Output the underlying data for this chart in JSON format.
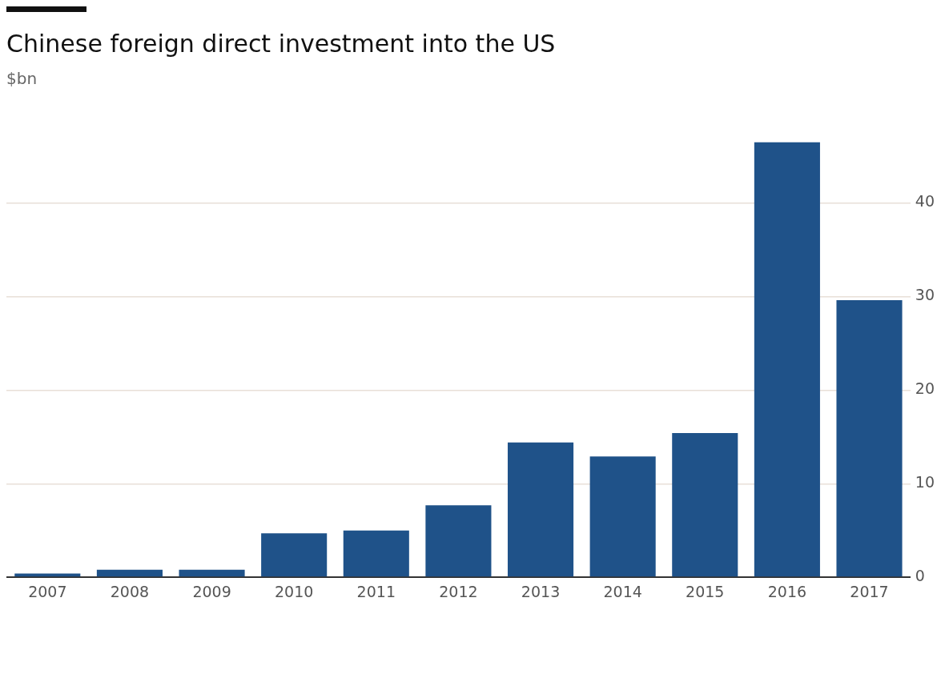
{
  "chart_data": {
    "type": "bar",
    "title": "Chinese foreign direct investment into the US",
    "annotations": [
      "$bn"
    ],
    "categories": [
      "2007",
      "2008",
      "2009",
      "2010",
      "2011",
      "2012",
      "2013",
      "2014",
      "2015",
      "2016",
      "2017"
    ],
    "series": [
      {
        "color": "#1f5289",
        "values": [
          0.4,
          0.8,
          0.8,
          4.7,
          5.0,
          7.7,
          14.4,
          12.9,
          15.4,
          46.5,
          29.6
        ]
      }
    ],
    "ylim": [
      0,
      46.5
    ],
    "yticks": [
      0,
      10,
      20,
      30,
      40
    ],
    "grid": "y",
    "legend": false
  }
}
